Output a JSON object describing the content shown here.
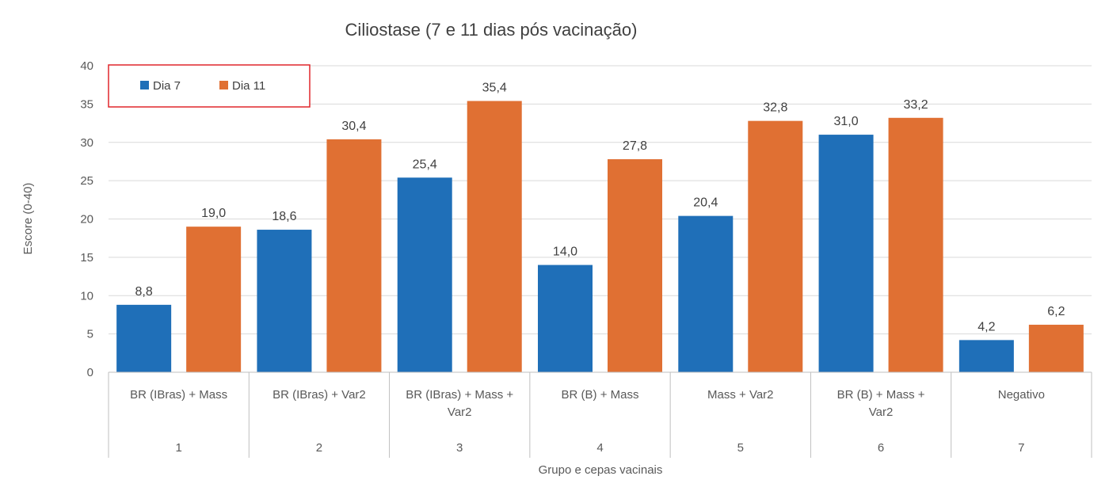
{
  "chart_data": {
    "type": "bar",
    "title": "Ciliostase (7 e 11 dias pós vacinação)",
    "xlabel": "Grupo e cepas vacinais",
    "ylabel": "Escore (0-40)",
    "ylim": [
      0,
      40
    ],
    "yticks": [
      0,
      5,
      10,
      15,
      20,
      25,
      30,
      35,
      40
    ],
    "grid": true,
    "legend_position": "top-left",
    "categories": [
      {
        "label": [
          "BR (IBras) + Mass"
        ],
        "group": "1"
      },
      {
        "label": [
          "BR (IBras) + Var2"
        ],
        "group": "2"
      },
      {
        "label": [
          "BR (IBras) + Mass +",
          "Var2"
        ],
        "group": "3"
      },
      {
        "label": [
          "BR (B) + Mass"
        ],
        "group": "4"
      },
      {
        "label": [
          "Mass + Var2"
        ],
        "group": "5"
      },
      {
        "label": [
          "BR (B) + Mass +",
          "Var2"
        ],
        "group": "6"
      },
      {
        "label": [
          "Negativo"
        ],
        "group": "7"
      }
    ],
    "series": [
      {
        "name": "Dia 7",
        "color": "#1f6fb8",
        "values": [
          8.8,
          18.6,
          25.4,
          14.0,
          20.4,
          31.0,
          4.2
        ],
        "labels": [
          "8,8",
          "18,6",
          "25,4",
          "14,0",
          "20,4",
          "31,0",
          "4,2"
        ]
      },
      {
        "name": "Dia 11",
        "color": "#e07033",
        "values": [
          19.0,
          30.4,
          35.4,
          27.8,
          32.8,
          33.2,
          6.2
        ],
        "labels": [
          "19,0",
          "30,4",
          "35,4",
          "27,8",
          "32,8",
          "33,2",
          "6,2"
        ]
      }
    ],
    "colors": {
      "grid": "#d9d9d9",
      "axis": "#bfbfbf",
      "legend_border": "#e0262b"
    }
  }
}
